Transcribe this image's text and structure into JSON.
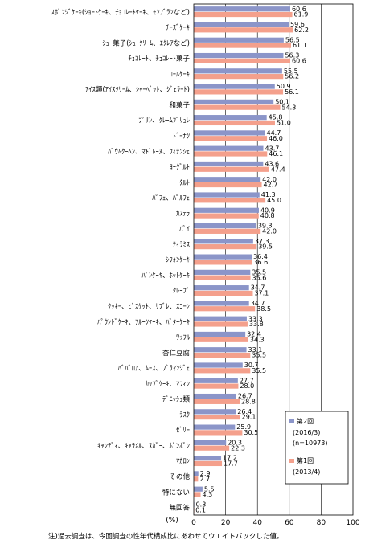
{
  "chart_data": {
    "type": "bar",
    "orientation": "horizontal",
    "xlim": [
      0,
      100
    ],
    "xticks": [
      "0",
      "20",
      "40",
      "60",
      "80",
      "100"
    ],
    "unit_label": "(%)",
    "grid": true,
    "legend_position": "right",
    "categories": [
      "ｽﾎﾟﾝｼﾞｹｰｷ(ｼｮｰﾄｹｰｷ、ﾁｮｺﾚｰﾄｹｰｷ、ﾓﾝﾌﾞﾗﾝなど)",
      "ﾁｰｽﾞｹｰｷ",
      "ｼｭｰ菓子(ｼｭｰｸﾘｰﾑ、ｴｸﾚｱなど)",
      "ﾁｮｺﾚｰﾄ、ﾁｮｺﾚｰﾄ菓子",
      "ﾛｰﾙｹｰｷ",
      "ｱｲｽ類(ｱｲｽｸﾘｰﾑ、ｼｬｰﾍﾞｯﾄ、ｼﾞｪﾗｰﾄ)",
      "和菓子",
      "ﾌﾟﾘﾝ、ｸﾚｰﾑﾌﾞﾘｭﾚ",
      "ﾄﾞｰﾅﾂ",
      "ﾊﾞｳﾑｸｰﾍﾝ、ﾏﾄﾞﾚｰﾇ、ﾌｨﾅﾝｼｪ",
      "ﾖｰｸﾞﾙﾄ",
      "ﾀﾙﾄ",
      "ﾊﾟﾌｪ、ﾊﾟﾙﾌｪ",
      "ｶｽﾃﾗ",
      "ﾊﾟｲ",
      "ﾃｨﾗﾐｽ",
      "ｼﾌｫﾝｹｰｷ",
      "ﾊﾟﾝｹｰｷ、ﾎｯﾄｹｰｷ",
      "ｸﾚｰﾌﾟ",
      "ｸｯｷｰ、ﾋﾞｽｹｯﾄ、ｻﾌﾞﾚ、ｽｺｰﾝ",
      "ﾊﾟｳﾝﾄﾞｹｰｷ、ﾌﾙｰﾂｹｰｷ、ﾊﾞﾀｰｹｰｷ",
      "ﾜｯﾌﾙ",
      "杏仁豆腐",
      "ﾊﾞﾊﾞﾛｱ、ﾑｰｽ、ﾌﾞﾗﾏﾝｼﾞｪ",
      "ｶｯﾌﾟｹｰｷ、ﾏﾌｨﾝ",
      "ﾃﾞﾆｯｼｭ類",
      "ﾗｽｸ",
      "ｾﾞﾘｰ",
      "ｷｬﾝﾃﾞｨ、ｷｬﾗﾒﾙ、ﾇｶﾞｰ、ﾎﾞﾝﾎﾞﾝ",
      "ﾏｶﾛﾝ",
      "その他",
      "特にない",
      "無回答"
    ],
    "series": [
      {
        "name": "第2回",
        "legend_lines": [
          "第2回",
          "(2016/3)",
          "(n=10973)"
        ],
        "color": "#8b95c9",
        "values": [
          60.6,
          59.6,
          56.5,
          56.3,
          55.5,
          50.9,
          50.1,
          45.8,
          44.7,
          43.7,
          43.6,
          42.0,
          41.3,
          40.9,
          39.3,
          37.3,
          36.4,
          35.5,
          34.7,
          34.7,
          33.3,
          32.4,
          33.1,
          30.7,
          27.7,
          26.7,
          26.4,
          25.9,
          20.3,
          17.2,
          2.9,
          5.5,
          0.3
        ]
      },
      {
        "name": "第1回",
        "legend_lines": [
          "第1回",
          "(2013/4)"
        ],
        "color": "#f4a08c",
        "values": [
          61.9,
          62.2,
          61.1,
          60.6,
          56.2,
          56.1,
          54.3,
          51.0,
          46.0,
          46.1,
          47.4,
          42.7,
          45.0,
          40.8,
          42.0,
          39.5,
          36.6,
          35.6,
          37.1,
          38.5,
          33.8,
          34.3,
          35.5,
          35.5,
          28.0,
          28.8,
          29.1,
          30.5,
          22.3,
          17.7,
          2.7,
          4.3,
          0.1
        ]
      }
    ],
    "note": "注)過去調査は、今回調査の性年代構成比にあわせてウエイトバックした値。"
  }
}
